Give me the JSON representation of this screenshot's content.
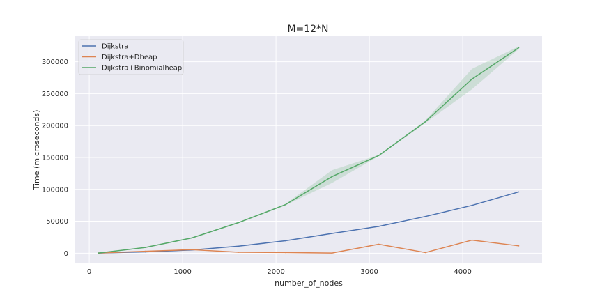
{
  "chart_data": {
    "type": "line",
    "title": "M=12*N",
    "xlabel": "number_of_nodes",
    "ylabel": "Time (microseconds)",
    "xlim": [
      -150,
      4850
    ],
    "ylim": [
      -16000,
      340000
    ],
    "x_ticks": [
      0,
      1000,
      2000,
      3000,
      4000
    ],
    "y_ticks": [
      0,
      50000,
      100000,
      150000,
      200000,
      250000,
      300000
    ],
    "grid": true,
    "legend_position": "top-left",
    "x": [
      100,
      600,
      1100,
      1600,
      2100,
      2600,
      3100,
      3600,
      4100,
      4600
    ],
    "series": [
      {
        "name": "Dijkstra",
        "color": "#4c72b0",
        "values": [
          200,
          2000,
          5000,
          11000,
          19500,
          31000,
          42000,
          57500,
          75000,
          96000
        ]
      },
      {
        "name": "Dijkstra+Dheap",
        "color": "#dd8452",
        "values": [
          300,
          3000,
          5500,
          1500,
          1000,
          200,
          14000,
          1000,
          20500,
          11500
        ]
      },
      {
        "name": "Dijkstra+Binomialheap",
        "color": "#55a868",
        "values": [
          300,
          9000,
          24000,
          48000,
          76000,
          120000,
          153000,
          206000,
          273000,
          322000
        ],
        "lower": [
          300,
          8500,
          23000,
          47000,
          75000,
          110000,
          152000,
          204000,
          257000,
          320000
        ],
        "upper": [
          300,
          9500,
          25000,
          49000,
          77000,
          130000,
          154000,
          208000,
          289000,
          324000
        ]
      }
    ]
  }
}
